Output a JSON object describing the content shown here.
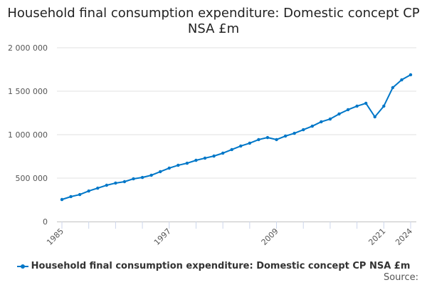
{
  "chart_data": {
    "type": "line",
    "title": "Household final consumption expenditure: Domestic concept CP NSA £m",
    "xlabel": "",
    "ylabel": "",
    "ylim": [
      0,
      2000000
    ],
    "y_ticks": [
      0,
      500000,
      1000000,
      1500000,
      2000000
    ],
    "y_tick_labels": [
      "0",
      "500 000",
      "1 000 000",
      "1 500 000",
      "2 000 000"
    ],
    "x_tick_labels": [
      "1985",
      "1997",
      "2009",
      "2021",
      "2024"
    ],
    "grid": true,
    "legend_position": "bottom",
    "color": "#0077c8",
    "x": [
      1985,
      1986,
      1987,
      1988,
      1989,
      1990,
      1991,
      1992,
      1993,
      1994,
      1995,
      1996,
      1997,
      1998,
      1999,
      2000,
      2001,
      2002,
      2003,
      2004,
      2005,
      2006,
      2007,
      2008,
      2009,
      2010,
      2011,
      2012,
      2013,
      2014,
      2015,
      2016,
      2017,
      2018,
      2019,
      2020,
      2021,
      2022,
      2023,
      2024
    ],
    "series": [
      {
        "name": "Household final consumption expenditure: Domestic concept CP NSA £m",
        "values": [
          254000,
          287000,
          311000,
          352000,
          385000,
          418000,
          443000,
          459000,
          492000,
          508000,
          533000,
          574000,
          615000,
          648000,
          672000,
          705000,
          730000,
          754000,
          787000,
          828000,
          869000,
          902000,
          943000,
          967000,
          943000,
          984000,
          1016000,
          1057000,
          1098000,
          1148000,
          1180000,
          1238000,
          1287000,
          1328000,
          1361000,
          1205000,
          1328000,
          1541000,
          1631000,
          1689000
        ]
      }
    ]
  },
  "source_label": "Source:"
}
